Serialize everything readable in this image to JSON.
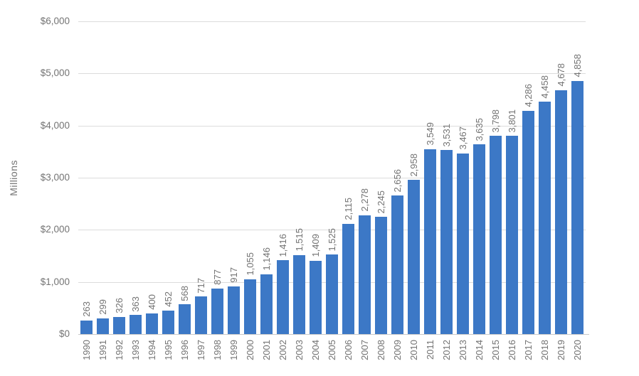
{
  "chart_data": {
    "type": "bar",
    "title": "",
    "xlabel": "",
    "ylabel": "Millions",
    "ylim": [
      0,
      6000
    ],
    "ytick_step": 1000,
    "ytick_labels": [
      "$0",
      "$1,000",
      "$2,000",
      "$3,000",
      "$4,000",
      "$5,000",
      "$6,000"
    ],
    "grid": true,
    "legend": false,
    "categories": [
      "1990",
      "1991",
      "1992",
      "1993",
      "1994",
      "1995",
      "1996",
      "1997",
      "1998",
      "1999",
      "2000",
      "2001",
      "2002",
      "2003",
      "2004",
      "2005",
      "2006",
      "2007",
      "2008",
      "2009",
      "2010",
      "2011",
      "2012",
      "2013",
      "2014",
      "2015",
      "2016",
      "2017",
      "2018",
      "2019",
      "2020"
    ],
    "values": [
      263,
      299,
      326,
      363,
      400,
      452,
      568,
      717,
      877,
      917,
      1055,
      1146,
      1416,
      1515,
      1409,
      1525,
      2115,
      2278,
      2245,
      2656,
      2958,
      3549,
      3531,
      3467,
      3635,
      3798,
      3801,
      4286,
      4458,
      4678,
      4858
    ],
    "data_labels": [
      "263",
      "299",
      "326",
      "363",
      "400",
      "452",
      "568",
      "717",
      "877",
      "917",
      "1,055",
      "1,146",
      "1,416",
      "1,515",
      "1,409",
      "1,525",
      "2,115",
      "2,278",
      "2,245",
      "2,656",
      "2,958",
      "3,549",
      "3,531",
      "3,467",
      "3,635",
      "3,798",
      "3,801",
      "4,286",
      "4,458",
      "4,678",
      "4,858"
    ],
    "colors": {
      "bar": "#3c78c6",
      "gridline": "#dcdcdc",
      "axis_line": "#c9c9c9",
      "text": "#737373"
    }
  }
}
